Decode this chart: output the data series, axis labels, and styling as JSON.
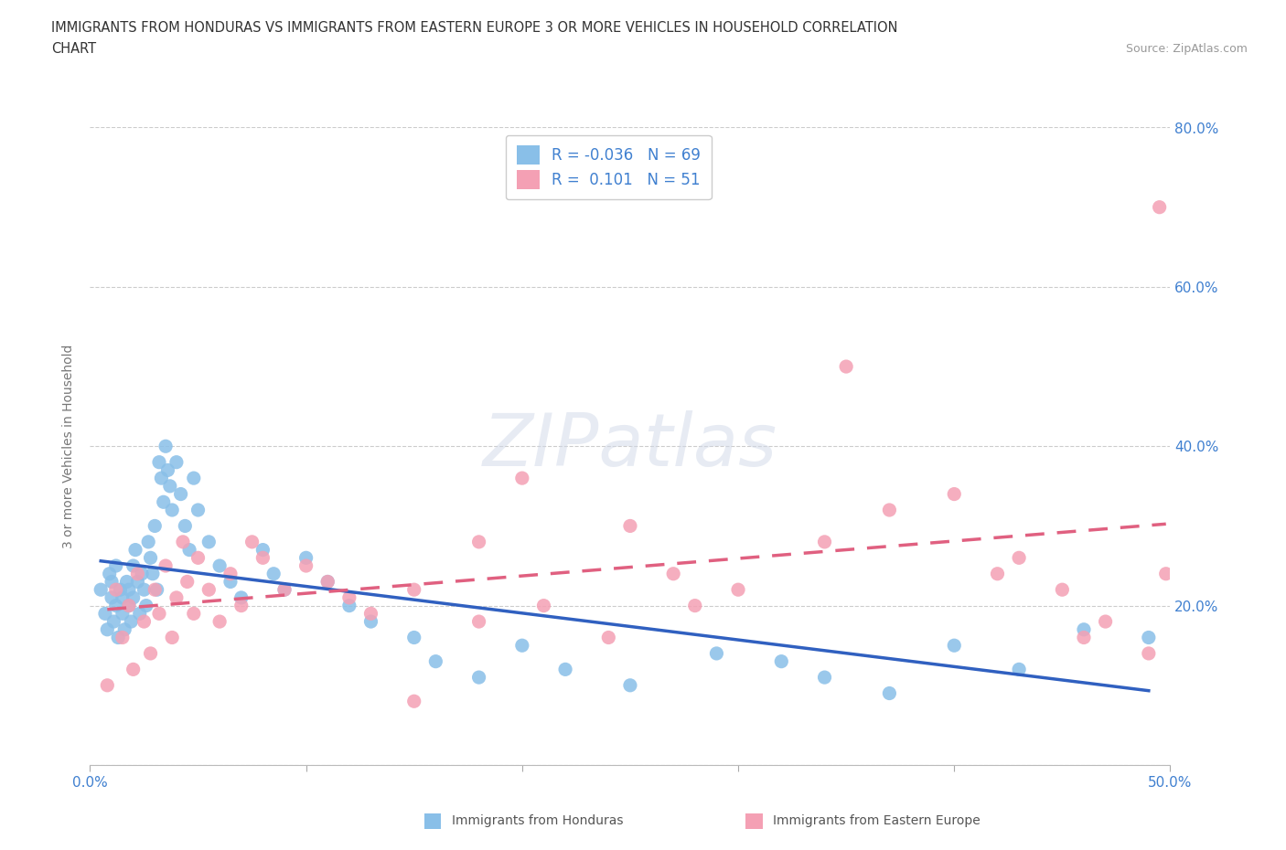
{
  "title_line1": "IMMIGRANTS FROM HONDURAS VS IMMIGRANTS FROM EASTERN EUROPE 3 OR MORE VEHICLES IN HOUSEHOLD CORRELATION",
  "title_line2": "CHART",
  "source": "Source: ZipAtlas.com",
  "ylabel": "3 or more Vehicles in Household",
  "xlim": [
    0.0,
    0.5
  ],
  "ylim": [
    0.0,
    0.8
  ],
  "xtick_vals": [
    0.0,
    0.1,
    0.2,
    0.3,
    0.4,
    0.5
  ],
  "xtick_labels": [
    "0.0%",
    "",
    "",
    "",
    "",
    "50.0%"
  ],
  "ytick_vals": [
    0.0,
    0.2,
    0.4,
    0.6,
    0.8
  ],
  "ytick_labels": [
    "",
    "20.0%",
    "40.0%",
    "60.0%",
    "80.0%"
  ],
  "watermark_text": "ZIPatlas",
  "legend_R1": "-0.036",
  "legend_N1": "69",
  "legend_R2": "0.101",
  "legend_N2": "51",
  "color_honduras": "#89BFE8",
  "color_eastern_europe": "#F4A0B4",
  "line_color_honduras": "#3060C0",
  "line_color_eastern_europe": "#E06080",
  "grid_color": "#cccccc",
  "bg_color": "#ffffff",
  "tick_color": "#4080D0",
  "label_color": "#777777",
  "title_color": "#333333",
  "source_color": "#999999",
  "scatter_honduras_x": [
    0.005,
    0.007,
    0.008,
    0.009,
    0.01,
    0.01,
    0.011,
    0.012,
    0.012,
    0.013,
    0.014,
    0.015,
    0.015,
    0.016,
    0.017,
    0.018,
    0.018,
    0.019,
    0.02,
    0.02,
    0.021,
    0.022,
    0.023,
    0.024,
    0.025,
    0.026,
    0.027,
    0.028,
    0.029,
    0.03,
    0.031,
    0.032,
    0.033,
    0.034,
    0.035,
    0.036,
    0.037,
    0.038,
    0.04,
    0.042,
    0.044,
    0.046,
    0.048,
    0.05,
    0.055,
    0.06,
    0.065,
    0.07,
    0.08,
    0.085,
    0.09,
    0.1,
    0.11,
    0.12,
    0.13,
    0.15,
    0.16,
    0.18,
    0.2,
    0.22,
    0.25,
    0.29,
    0.32,
    0.34,
    0.37,
    0.4,
    0.43,
    0.46,
    0.49
  ],
  "scatter_honduras_y": [
    0.22,
    0.19,
    0.17,
    0.24,
    0.21,
    0.23,
    0.18,
    0.2,
    0.25,
    0.16,
    0.22,
    0.21,
    0.19,
    0.17,
    0.23,
    0.2,
    0.22,
    0.18,
    0.25,
    0.21,
    0.27,
    0.23,
    0.19,
    0.24,
    0.22,
    0.2,
    0.28,
    0.26,
    0.24,
    0.3,
    0.22,
    0.38,
    0.36,
    0.33,
    0.4,
    0.37,
    0.35,
    0.32,
    0.38,
    0.34,
    0.3,
    0.27,
    0.36,
    0.32,
    0.28,
    0.25,
    0.23,
    0.21,
    0.27,
    0.24,
    0.22,
    0.26,
    0.23,
    0.2,
    0.18,
    0.16,
    0.13,
    0.11,
    0.15,
    0.12,
    0.1,
    0.14,
    0.13,
    0.11,
    0.09,
    0.15,
    0.12,
    0.17,
    0.16
  ],
  "scatter_eastern_europe_x": [
    0.008,
    0.012,
    0.015,
    0.018,
    0.02,
    0.022,
    0.025,
    0.028,
    0.03,
    0.032,
    0.035,
    0.038,
    0.04,
    0.043,
    0.045,
    0.048,
    0.05,
    0.055,
    0.06,
    0.065,
    0.07,
    0.075,
    0.08,
    0.09,
    0.1,
    0.11,
    0.12,
    0.13,
    0.15,
    0.18,
    0.21,
    0.24,
    0.27,
    0.3,
    0.34,
    0.37,
    0.4,
    0.43,
    0.45,
    0.47,
    0.49,
    0.495,
    0.498,
    0.2,
    0.25,
    0.18,
    0.28,
    0.15,
    0.35,
    0.42,
    0.46
  ],
  "scatter_eastern_europe_y": [
    0.1,
    0.22,
    0.16,
    0.2,
    0.12,
    0.24,
    0.18,
    0.14,
    0.22,
    0.19,
    0.25,
    0.16,
    0.21,
    0.28,
    0.23,
    0.19,
    0.26,
    0.22,
    0.18,
    0.24,
    0.2,
    0.28,
    0.26,
    0.22,
    0.25,
    0.23,
    0.21,
    0.19,
    0.22,
    0.18,
    0.2,
    0.16,
    0.24,
    0.22,
    0.28,
    0.32,
    0.34,
    0.26,
    0.22,
    0.18,
    0.14,
    0.7,
    0.24,
    0.36,
    0.3,
    0.28,
    0.2,
    0.08,
    0.5,
    0.24,
    0.16
  ]
}
